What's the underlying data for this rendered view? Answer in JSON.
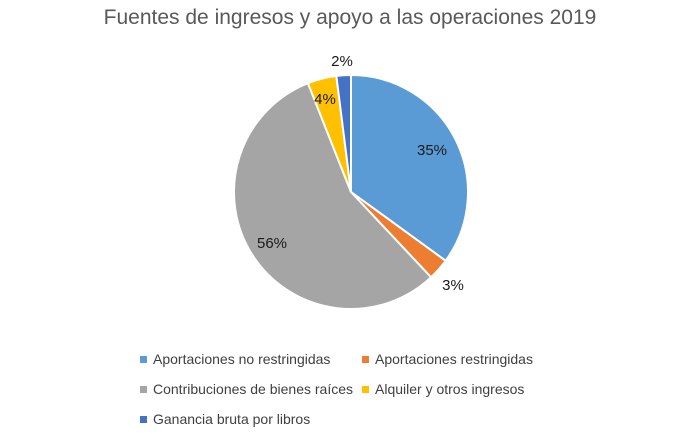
{
  "chart_data": {
    "type": "pie",
    "title": "Fuentes de ingresos y apoyo a las operaciones 2019",
    "slices": [
      {
        "label": "Aportaciones no restringidas",
        "value": 35,
        "display": "35%",
        "color": "#5b9bd5"
      },
      {
        "label": "Aportaciones restringidas",
        "value": 3,
        "display": "3%",
        "color": "#ed7d31"
      },
      {
        "label": "Contribuciones de bienes raíces",
        "value": 56,
        "display": "56%",
        "color": "#a5a5a5"
      },
      {
        "label": "Alquiler y otros ingresos",
        "value": 4,
        "display": "4%",
        "color": "#ffc000"
      },
      {
        "label": "Ganancia bruta por libros",
        "value": 2,
        "display": "2%",
        "color": "#4472c4"
      }
    ],
    "legend_position": "bottom"
  }
}
